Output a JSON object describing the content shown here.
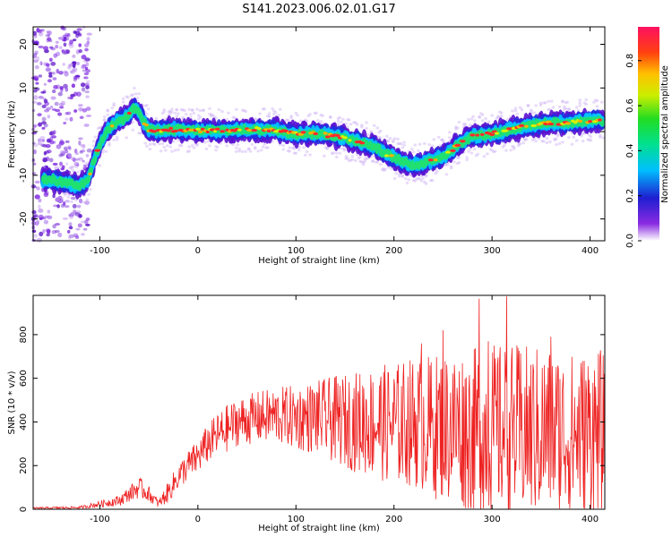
{
  "figure_title": "S141.2023.006.02.01.G17",
  "chart_data": [
    {
      "type": "heatmap",
      "name": "spectrogram",
      "xlabel": "Height of straight line (km)",
      "ylabel": "Frequency (Hz)",
      "xlim": [
        -168,
        415
      ],
      "ylim": [
        -25,
        24
      ],
      "xticks": [
        -100,
        0,
        100,
        200,
        300,
        400
      ],
      "yticks": [
        -20,
        -10,
        0,
        10,
        20
      ],
      "colorbar": {
        "label": "Normalized spectral amplitude",
        "range": [
          0.0,
          0.95
        ],
        "ticks": [
          "0.0",
          "0.2",
          "0.4",
          "0.6",
          "0.8"
        ],
        "colormap": "rainbow"
      },
      "ridge": {
        "x": [
          -150,
          -130,
          -120,
          -112,
          -105,
          -98,
          -90,
          -82,
          -75,
          -70,
          -65,
          -60,
          -55,
          -50,
          -40,
          -20,
          0,
          20,
          40,
          60,
          80,
          100,
          120,
          140,
          160,
          180,
          195,
          205,
          215,
          225,
          240,
          255,
          265,
          280,
          300,
          320,
          340,
          360,
          380,
          400,
          415
        ],
        "y": [
          -11,
          -12,
          -12.5,
          -11,
          -6,
          -2,
          1,
          2.5,
          3,
          4,
          5.5,
          4.5,
          2,
          0.5,
          0.3,
          0.5,
          0.2,
          0.3,
          0.3,
          0.5,
          0.3,
          -0.5,
          -0.5,
          -1,
          -2,
          -3.5,
          -5.5,
          -6.5,
          -7.5,
          -7.5,
          -6.5,
          -5,
          -3,
          -1,
          -0.5,
          0.5,
          1.5,
          2,
          2,
          2.5,
          2.5
        ]
      },
      "color_threshold": 0.62
    },
    {
      "type": "line",
      "name": "snr",
      "xlabel": "Height of straight line (km)",
      "ylabel": "SNR (10 * v/v)",
      "xlim": [
        -168,
        415
      ],
      "ylim": [
        0,
        980
      ],
      "xticks": [
        -100,
        0,
        100,
        200,
        300,
        400
      ],
      "yticks": [
        0,
        200,
        400,
        600,
        800
      ],
      "color": "#ee2222",
      "envelope": {
        "x": [
          -168,
          -120,
          -80,
          -70,
          -60,
          -50,
          -40,
          -30,
          -20,
          -10,
          0,
          10,
          20,
          30,
          40,
          60,
          80,
          100,
          120,
          140,
          160,
          180,
          200,
          220,
          240,
          260,
          280,
          300,
          320,
          340,
          360,
          380,
          400,
          415
        ],
        "mean": [
          5,
          8,
          40,
          70,
          100,
          70,
          25,
          80,
          150,
          200,
          240,
          300,
          340,
          370,
          400,
          420,
          430,
          420,
          420,
          410,
          400,
          400,
          390,
          400,
          380,
          380,
          360,
          370,
          360,
          350,
          360,
          340,
          360,
          350
        ],
        "spread": [
          4,
          6,
          25,
          35,
          50,
          35,
          20,
          50,
          60,
          70,
          80,
          90,
          100,
          110,
          110,
          120,
          130,
          150,
          170,
          200,
          230,
          260,
          280,
          300,
          330,
          360,
          380,
          390,
          400,
          400,
          390,
          380,
          380,
          380
        ]
      },
      "peaks": [
        {
          "x": 287,
          "y": 965
        },
        {
          "x": 315,
          "y": 975
        },
        {
          "x": 296,
          "y": 770
        },
        {
          "x": 250,
          "y": 820
        },
        {
          "x": 228,
          "y": 760
        },
        {
          "x": 360,
          "y": 790
        }
      ]
    }
  ]
}
